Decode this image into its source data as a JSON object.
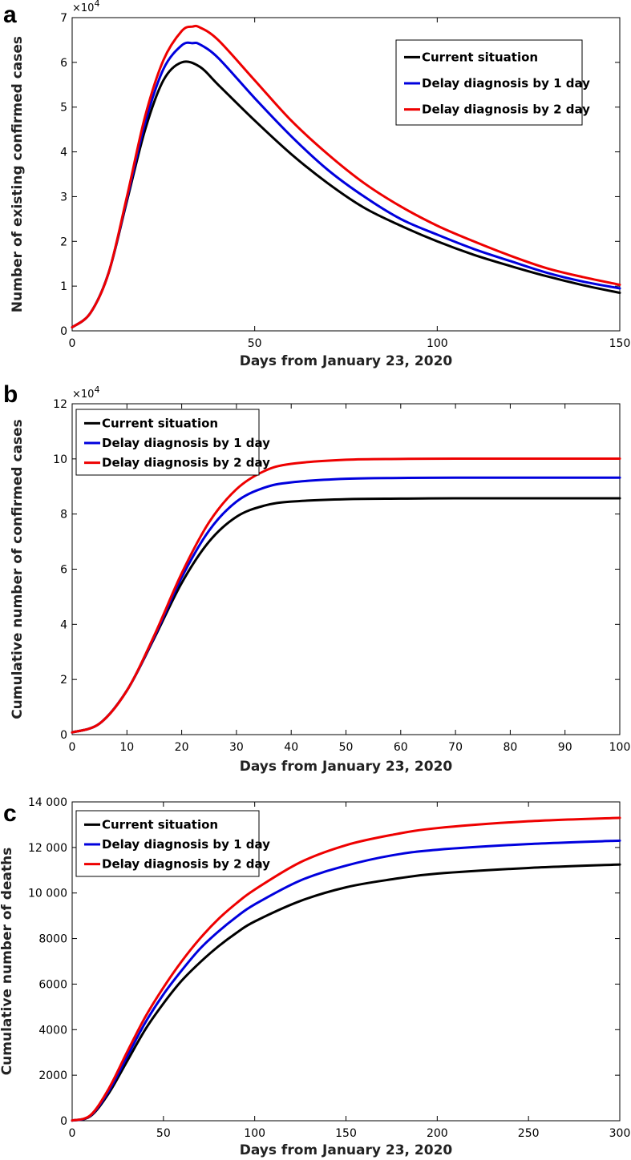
{
  "chart_data": [
    {
      "panel": "a",
      "type": "line",
      "title": "",
      "xlabel": "Days from January 23, 2020",
      "ylabel": "Number of existing confirmed cases",
      "y_multiplier_label": "×10",
      "y_multiplier_exp": "4",
      "xlim": [
        0,
        150
      ],
      "ylim": [
        0,
        7
      ],
      "xticks": [
        0,
        50,
        100,
        150
      ],
      "yticks": [
        0,
        1,
        2,
        3,
        4,
        5,
        6,
        7
      ],
      "xtick_labels": [
        "0",
        "50",
        "100",
        "150"
      ],
      "ytick_labels": [
        "0",
        "1",
        "2",
        "3",
        "4",
        "5",
        "6",
        "7"
      ],
      "legend_position": "top-right",
      "series": [
        {
          "name": "Current situation",
          "color": "#000000",
          "x": [
            0,
            5,
            10,
            15,
            20,
            25,
            30,
            35,
            40,
            50,
            60,
            70,
            80,
            90,
            100,
            110,
            120,
            130,
            140,
            150
          ],
          "y": [
            0.08,
            0.4,
            1.3,
            2.9,
            4.5,
            5.6,
            6.0,
            5.9,
            5.5,
            4.7,
            3.95,
            3.3,
            2.75,
            2.35,
            2.0,
            1.7,
            1.45,
            1.22,
            1.02,
            0.85
          ]
        },
        {
          "name": "Delay diagnosis by 1 day",
          "color": "#0000dd",
          "x": [
            0,
            5,
            10,
            15,
            20,
            25,
            30,
            33,
            35,
            40,
            50,
            60,
            70,
            80,
            90,
            100,
            110,
            120,
            130,
            140,
            150
          ],
          "y": [
            0.08,
            0.4,
            1.3,
            2.95,
            4.65,
            5.85,
            6.38,
            6.43,
            6.4,
            6.1,
            5.2,
            4.35,
            3.6,
            3.0,
            2.5,
            2.15,
            1.83,
            1.56,
            1.3,
            1.1,
            0.95
          ]
        },
        {
          "name": "Delay diagnosis by 2 day",
          "color": "#ee0000",
          "x": [
            0,
            5,
            10,
            15,
            20,
            25,
            30,
            33,
            35,
            40,
            50,
            60,
            70,
            80,
            90,
            100,
            110,
            120,
            130,
            140,
            150
          ],
          "y": [
            0.08,
            0.4,
            1.3,
            3.0,
            4.8,
            6.05,
            6.7,
            6.8,
            6.78,
            6.5,
            5.6,
            4.7,
            3.95,
            3.3,
            2.78,
            2.35,
            2.0,
            1.68,
            1.4,
            1.2,
            1.03
          ]
        }
      ]
    },
    {
      "panel": "b",
      "type": "line",
      "title": "",
      "xlabel": "Days from January 23, 2020",
      "ylabel": "Cumulative number of confirmed cases",
      "y_multiplier_label": "×10",
      "y_multiplier_exp": "4",
      "xlim": [
        0,
        100
      ],
      "ylim": [
        0,
        12
      ],
      "xticks": [
        0,
        10,
        20,
        30,
        40,
        50,
        60,
        70,
        80,
        90,
        100
      ],
      "yticks": [
        0,
        2,
        4,
        6,
        8,
        10,
        12
      ],
      "xtick_labels": [
        "0",
        "10",
        "20",
        "30",
        "40",
        "50",
        "60",
        "70",
        "80",
        "90",
        "100"
      ],
      "ytick_labels": [
        "0",
        "2",
        "4",
        "6",
        "8",
        "10",
        "12"
      ],
      "legend_position": "top-left",
      "series": [
        {
          "name": "Current situation",
          "color": "#000000",
          "x": [
            0,
            5,
            10,
            15,
            20,
            25,
            30,
            35,
            40,
            50,
            60,
            70,
            80,
            90,
            100
          ],
          "y": [
            0.08,
            0.4,
            1.6,
            3.5,
            5.5,
            7.0,
            7.9,
            8.3,
            8.45,
            8.54,
            8.56,
            8.57,
            8.57,
            8.57,
            8.57
          ]
        },
        {
          "name": "Delay diagnosis by 1 day",
          "color": "#0000dd",
          "x": [
            0,
            5,
            10,
            15,
            20,
            25,
            30,
            35,
            40,
            50,
            60,
            70,
            80,
            90,
            100
          ],
          "y": [
            0.08,
            0.4,
            1.6,
            3.55,
            5.7,
            7.4,
            8.45,
            8.95,
            9.15,
            9.28,
            9.31,
            9.32,
            9.32,
            9.32,
            9.32
          ]
        },
        {
          "name": "Delay diagnosis by 2 day",
          "color": "#ee0000",
          "x": [
            0,
            5,
            10,
            15,
            20,
            25,
            30,
            35,
            40,
            50,
            60,
            70,
            80,
            90,
            100
          ],
          "y": [
            0.08,
            0.4,
            1.6,
            3.6,
            5.85,
            7.7,
            8.9,
            9.55,
            9.82,
            9.97,
            10.0,
            10.01,
            10.01,
            10.01,
            10.01
          ]
        }
      ]
    },
    {
      "panel": "c",
      "type": "line",
      "title": "",
      "xlabel": "Days from January 23, 2020",
      "ylabel": "Cumulative number of deaths",
      "xlim": [
        0,
        300
      ],
      "ylim": [
        0,
        14000
      ],
      "xticks": [
        0,
        50,
        100,
        150,
        200,
        250,
        300
      ],
      "yticks": [
        0,
        2000,
        4000,
        6000,
        8000,
        10000,
        12000,
        14000
      ],
      "xtick_labels": [
        "0",
        "50",
        "100",
        "150",
        "200",
        "250",
        "300"
      ],
      "ytick_labels": [
        "0",
        "2000",
        "4000",
        "6000",
        "8000",
        "10 000",
        "12 000",
        "14 000"
      ],
      "legend_position": "top-left",
      "series": [
        {
          "name": "Current situation",
          "color": "#000000",
          "x": [
            0,
            10,
            20,
            30,
            40,
            50,
            60,
            70,
            80,
            90,
            100,
            125,
            150,
            175,
            200,
            250,
            300
          ],
          "y": [
            10,
            200,
            1200,
            2600,
            4000,
            5150,
            6150,
            6950,
            7650,
            8250,
            8750,
            9650,
            10250,
            10600,
            10850,
            11100,
            11250
          ]
        },
        {
          "name": "Delay diagnosis by 1 day",
          "color": "#0000dd",
          "x": [
            0,
            10,
            20,
            30,
            40,
            50,
            60,
            70,
            80,
            90,
            100,
            125,
            150,
            175,
            200,
            250,
            300
          ],
          "y": [
            10,
            220,
            1300,
            2800,
            4300,
            5550,
            6600,
            7550,
            8300,
            8950,
            9500,
            10550,
            11200,
            11650,
            11900,
            12150,
            12300
          ]
        },
        {
          "name": "Delay diagnosis by 2 day",
          "color": "#ee0000",
          "x": [
            0,
            10,
            20,
            30,
            40,
            50,
            60,
            70,
            80,
            90,
            100,
            125,
            150,
            175,
            200,
            250,
            300
          ],
          "y": [
            10,
            240,
            1400,
            3000,
            4550,
            5850,
            7000,
            8000,
            8850,
            9550,
            10150,
            11350,
            12100,
            12550,
            12850,
            13150,
            13300
          ]
        }
      ]
    }
  ]
}
